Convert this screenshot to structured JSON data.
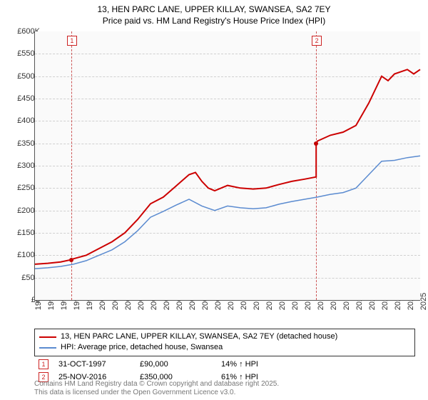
{
  "title": {
    "line1": "13, HEN PARC LANE, UPPER KILLAY, SWANSEA, SA2 7EY",
    "line2": "Price paid vs. HM Land Registry's House Price Index (HPI)"
  },
  "chart": {
    "type": "line",
    "background_color": "#fafafa",
    "grid_color": "#d0d0d0",
    "axis_color": "#555555",
    "x": {
      "min": 1995,
      "max": 2025,
      "step": 1
    },
    "y": {
      "min": 0,
      "max": 600000,
      "step": 50000,
      "prefix": "£",
      "suffix_k": "K"
    },
    "series": [
      {
        "name": "price_paid",
        "label": "13, HEN PARC LANE, UPPER KILLAY, SWANSEA, SA2 7EY (detached house)",
        "color": "#cc0000",
        "width": 2,
        "points": [
          [
            1995,
            80000
          ],
          [
            1996,
            82000
          ],
          [
            1997,
            85000
          ],
          [
            1997.83,
            90000
          ],
          [
            1998,
            92000
          ],
          [
            1999,
            100000
          ],
          [
            2000,
            115000
          ],
          [
            2001,
            130000
          ],
          [
            2002,
            150000
          ],
          [
            2003,
            180000
          ],
          [
            2004,
            215000
          ],
          [
            2005,
            230000
          ],
          [
            2006,
            255000
          ],
          [
            2007,
            280000
          ],
          [
            2007.5,
            285000
          ],
          [
            2008,
            265000
          ],
          [
            2008.5,
            250000
          ],
          [
            2009,
            244000
          ],
          [
            2010,
            256000
          ],
          [
            2011,
            250000
          ],
          [
            2012,
            248000
          ],
          [
            2013,
            250000
          ],
          [
            2014,
            258000
          ],
          [
            2015,
            265000
          ],
          [
            2016,
            270000
          ],
          [
            2016.9,
            275000
          ],
          [
            2016.9,
            350000
          ],
          [
            2017,
            355000
          ],
          [
            2018,
            368000
          ],
          [
            2019,
            375000
          ],
          [
            2020,
            390000
          ],
          [
            2021,
            440000
          ],
          [
            2022,
            500000
          ],
          [
            2022.5,
            490000
          ],
          [
            2023,
            505000
          ],
          [
            2024,
            515000
          ],
          [
            2024.5,
            505000
          ],
          [
            2025,
            515000
          ]
        ]
      },
      {
        "name": "hpi",
        "label": "HPI: Average price, detached house, Swansea",
        "color": "#5b8bd0",
        "width": 1.5,
        "points": [
          [
            1995,
            70000
          ],
          [
            1996,
            72000
          ],
          [
            1997,
            75000
          ],
          [
            1998,
            80000
          ],
          [
            1999,
            88000
          ],
          [
            2000,
            100000
          ],
          [
            2001,
            112000
          ],
          [
            2002,
            130000
          ],
          [
            2003,
            155000
          ],
          [
            2004,
            185000
          ],
          [
            2005,
            198000
          ],
          [
            2006,
            212000
          ],
          [
            2007,
            225000
          ],
          [
            2008,
            210000
          ],
          [
            2009,
            200000
          ],
          [
            2010,
            210000
          ],
          [
            2011,
            206000
          ],
          [
            2012,
            204000
          ],
          [
            2013,
            206000
          ],
          [
            2014,
            214000
          ],
          [
            2015,
            220000
          ],
          [
            2016,
            225000
          ],
          [
            2017,
            230000
          ],
          [
            2018,
            236000
          ],
          [
            2019,
            240000
          ],
          [
            2020,
            250000
          ],
          [
            2021,
            280000
          ],
          [
            2022,
            310000
          ],
          [
            2023,
            312000
          ],
          [
            2024,
            318000
          ],
          [
            2025,
            322000
          ]
        ]
      }
    ],
    "markers": [
      {
        "n": "1",
        "date": "31-OCT-1997",
        "year": 1997.83,
        "price": "£90,000",
        "price_val": 90000,
        "pct": "14% ↑ HPI"
      },
      {
        "n": "2",
        "date": "25-NOV-2016",
        "year": 2016.9,
        "price": "£350,000",
        "price_val": 350000,
        "pct": "61% ↑ HPI"
      }
    ]
  },
  "legend": {
    "series1": "13, HEN PARC LANE, UPPER KILLAY, SWANSEA, SA2 7EY (detached house)",
    "series2": "HPI: Average price, detached house, Swansea"
  },
  "footer": {
    "line1": "Contains HM Land Registry data © Crown copyright and database right 2025.",
    "line2": "This data is licensed under the Open Government Licence v3.0."
  }
}
